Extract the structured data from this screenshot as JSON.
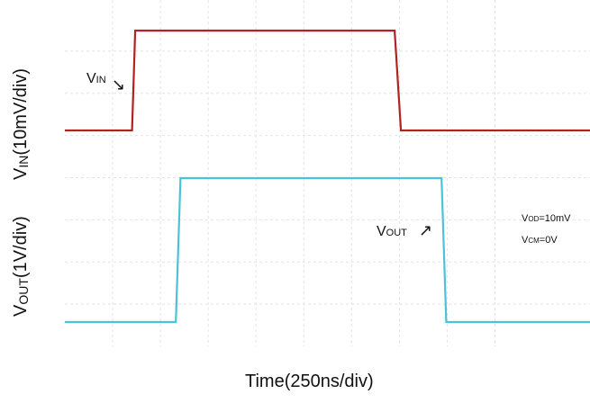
{
  "chart_data": {
    "type": "line",
    "xlabel": "Time(250ns/div)",
    "ylabel_top": {
      "main": "V",
      "sub": "IN",
      "rest": "(10mV/div)"
    },
    "ylabel_bottom": {
      "main": "V",
      "sub": "OUT",
      "rest": "(1V/div)"
    },
    "x_divisions": 10,
    "y_divisions": 8,
    "grid": true,
    "series": [
      {
        "name": "VIN",
        "label": {
          "main": "V",
          "sub": "IN",
          "arrow": "↘"
        },
        "color": "#b22222",
        "unit_time": "ns",
        "points": [
          [
            0,
            0
          ],
          [
            215,
            0
          ],
          [
            225,
            41
          ],
          [
            1055,
            41
          ],
          [
            1075,
            0
          ],
          [
            1680,
            0
          ]
        ]
      },
      {
        "name": "VOUT",
        "label": {
          "main": "V",
          "sub": "OUT",
          "arrow": "↗"
        },
        "color": "#4cc2d9",
        "points": [
          [
            0,
            0
          ],
          [
            355,
            0
          ],
          [
            370,
            3.6
          ],
          [
            1205,
            3.6
          ],
          [
            1220,
            0
          ],
          [
            1680,
            0
          ]
        ]
      }
    ],
    "annotations": [
      {
        "main": "V",
        "sub": "OD",
        "rest": "=10mV"
      },
      {
        "main": "V",
        "sub": "CM",
        "rest": "=0V"
      }
    ]
  }
}
